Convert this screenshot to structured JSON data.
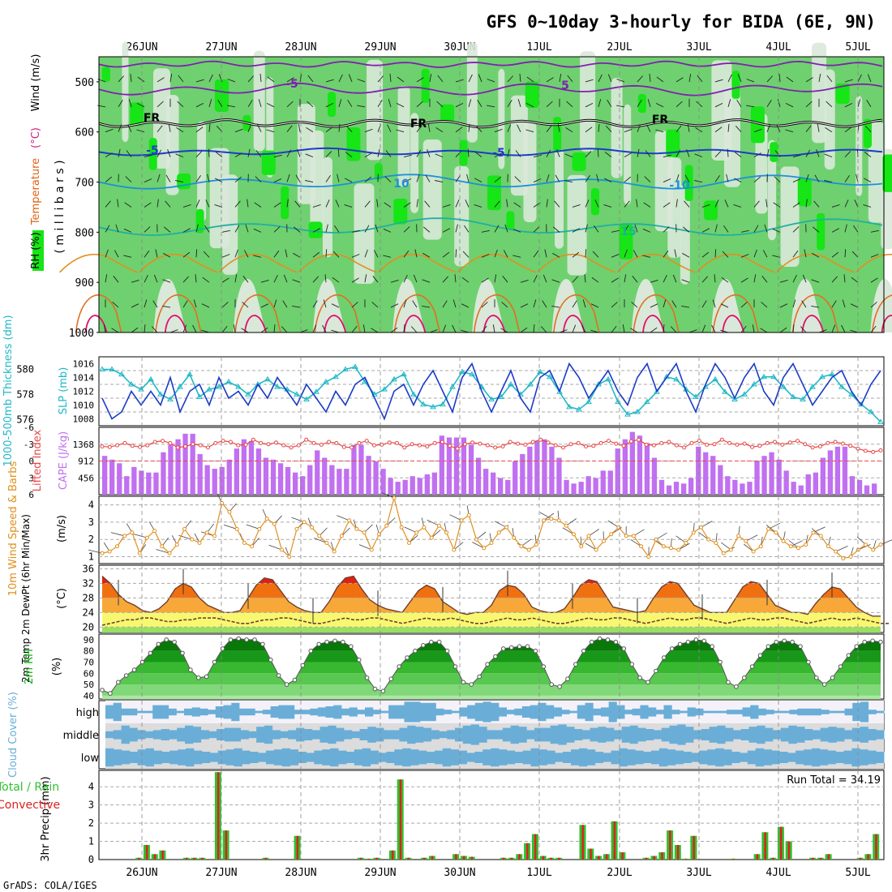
{
  "title": "GFS 0~10day 3-hourly for BIDA (6E, 9N)",
  "credit": "GrADS: COLA/IGES",
  "date_labels": [
    "26JUN",
    "27JUN",
    "28JUN",
    "29JUN",
    "30JUN",
    "1JUL",
    "2JUL",
    "3JUL",
    "4JUL",
    "5JUL"
  ],
  "colors": {
    "rh_light": "#d9e8d9",
    "rh_mid": "#6fd06f",
    "rh_high": "#16e516",
    "cape": "#c070f0",
    "li": "#e84848",
    "slp": "#1c3cc8",
    "thk": "#20b8c8",
    "wind": "#e09020",
    "rh2m": "#10b010",
    "cloud": "#6aaed8",
    "rain": "#30c030",
    "conv": "#e02020"
  },
  "chart_data": [
    {
      "panel": "upper_air",
      "type": "heatmap",
      "ylabel_parts": [
        "RH (%)",
        "Temperature",
        "(°C)",
        "Wind (m/s)"
      ],
      "yaxis_label": "( m i l l i b a r s )",
      "y_ticks": [
        "500",
        "600",
        "700",
        "800",
        "900",
        "1000"
      ],
      "ylim": [
        450,
        1000
      ],
      "contour_labels": [
        "-5",
        "5",
        "FR",
        "FR",
        "FR",
        "-5",
        "-5",
        "10",
        "-10",
        "15"
      ]
    },
    {
      "panel": "slp_thickness",
      "type": "line",
      "ylabel_left": "1000-500mb Thickness (dm)",
      "ylabel_right": "SLP (mb)",
      "left_ticks": [
        "580",
        "578",
        "576"
      ],
      "right_ticks": [
        "1016",
        "1014",
        "1012",
        "1010",
        "1008"
      ],
      "series": [
        {
          "name": "SLP (mb)",
          "values": [
            1011,
            1008,
            1009,
            1012,
            1010,
            1012,
            1010,
            1014,
            1009,
            1012,
            1013,
            1010,
            1014,
            1011,
            1012,
            1010,
            1013,
            1011,
            1014,
            1012,
            1010,
            1013,
            1011,
            1009,
            1012,
            1010,
            1013,
            1014,
            1011,
            1008,
            1012,
            1013,
            1010,
            1013,
            1015,
            1012,
            1009,
            1014,
            1016,
            1012,
            1009,
            1012,
            1015,
            1011,
            1009,
            1014,
            1015,
            1012,
            1016,
            1014,
            1011,
            1013,
            1015,
            1012,
            1010,
            1014,
            1016,
            1012,
            1014,
            1016,
            1012,
            1009,
            1013,
            1016,
            1014,
            1011,
            1014,
            1016,
            1012,
            1010,
            1014,
            1016,
            1013,
            1010,
            1012,
            1014,
            1015,
            1012,
            1010,
            1013,
            1015
          ],
          "ylim": [
            1007,
            1017
          ]
        },
        {
          "name": "Thickness (dm)",
          "values": [
            580,
            580,
            579.6,
            578.8,
            578.4,
            579.2,
            578,
            577.6,
            578.6,
            579.6,
            577.8,
            578.4,
            578.6,
            579,
            578.6,
            578,
            578.8,
            579.2,
            578.6,
            578.4,
            578,
            577.6,
            578.2,
            579,
            579.4,
            580,
            580.2,
            579,
            578,
            578.4,
            579.2,
            579.6,
            578,
            577.2,
            577,
            577.2,
            578.6,
            579.8,
            579.6,
            578.6,
            577.6,
            577.8,
            578.8,
            578,
            578.8,
            579.8,
            579.4,
            578.2,
            577,
            576.8,
            577.4,
            578.8,
            579.2,
            577.4,
            576.4,
            576.6,
            577.4,
            578.2,
            579.4,
            579.2,
            578.4,
            577.8,
            578.6,
            579.2,
            578.2,
            577.6,
            578,
            578.8,
            579.4,
            579.4,
            578.6,
            577.8,
            577.6,
            578.6,
            579.4,
            579.6,
            578.6,
            578,
            577.2,
            576.6,
            575.8
          ],
          "ylim": [
            575.5,
            581
          ]
        }
      ]
    },
    {
      "panel": "cape_li",
      "type": "bar",
      "ylabel_left": "Lifted Index",
      "ylabel_right": "CAPE (J/kg)",
      "li_ticks": [
        "-6",
        "-3",
        "0",
        "3",
        "6"
      ],
      "cape_ticks": [
        "1368",
        "912",
        "456"
      ],
      "cape": [
        1050,
        950,
        850,
        500,
        750,
        650,
        600,
        600,
        1150,
        1350,
        1500,
        1650,
        1650,
        1100,
        800,
        700,
        750,
        950,
        1250,
        1500,
        1450,
        1250,
        1000,
        950,
        850,
        750,
        600,
        500,
        800,
        1200,
        1000,
        800,
        700,
        700,
        1350,
        1350,
        1050,
        900,
        700,
        450,
        350,
        400,
        500,
        450,
        550,
        600,
        1600,
        1550,
        1550,
        1550,
        1350,
        1000,
        700,
        600,
        450,
        400,
        900,
        1100,
        1300,
        1450,
        1500,
        1300,
        1000,
        400,
        300,
        350,
        500,
        450,
        650,
        650,
        1250,
        1500,
        1700,
        1600,
        1400,
        1000,
        400,
        250,
        350,
        300,
        450,
        1300,
        1150,
        1050,
        800,
        500,
        400,
        300,
        350,
        900,
        1050,
        1150,
        950,
        650,
        350,
        250,
        550,
        600,
        1000,
        1200,
        1300,
        1300,
        500,
        400,
        250,
        300
      ],
      "li": [
        -2.6,
        -2.5,
        -2.8,
        -3.2,
        -2.7,
        -2.5,
        -2.8,
        -3.4,
        -3.6,
        -3.2,
        -2.4,
        -2.6,
        -3,
        -2.8,
        -2.4,
        -3.2,
        -3.6,
        -3.4,
        -2.8,
        -2.9,
        -3.8,
        -3.2,
        -3,
        -3.3,
        -2.8,
        -2.4,
        -2.8,
        -3.8,
        -3.2,
        -2.9,
        -3.4,
        -3.2,
        -2.5,
        -2.4,
        -3.2,
        -3.6,
        -2.8,
        -2.9,
        -3.3,
        -3.2,
        -2.4,
        -3,
        -2.8,
        -2.6,
        -3.2,
        -3.4,
        -2.7,
        -2.2,
        -3,
        -3.3,
        -3.1,
        -2.8,
        -2.4,
        -2.6,
        -3.4,
        -3.1,
        -2.9,
        -3.4,
        -3.8,
        -3.3,
        -2.8,
        -2.4,
        -3,
        -3.2,
        -2.6,
        -2.7,
        -3.2,
        -3.6,
        -3.1,
        -2.7,
        -3.5,
        -3.8,
        -2.9,
        -2.8,
        -3.2,
        -3.4,
        -2.8,
        -2.4,
        -3.2,
        -3.6,
        -2.9,
        -3,
        -3.8,
        -3.2,
        -2.9,
        -3.1,
        -2.5,
        -2.7,
        -3.2,
        -3.4,
        -2.9,
        -3.3,
        -3.6,
        -3,
        -2.4,
        -2.6,
        -3.2,
        -3.4,
        -3.1,
        -2.7,
        -2.2,
        -1.8,
        -1.6,
        -1.9
      ]
    },
    {
      "panel": "wind10m",
      "type": "line",
      "ylabel": "10m Wind Speed & Barbs",
      "yunit": "(m/s)",
      "y_ticks": [
        "1",
        "2",
        "3",
        "4"
      ],
      "ylim": [
        0.6,
        4.5
      ],
      "values": [
        1.2,
        1.3,
        1.6,
        2.2,
        2.4,
        1.2,
        2.1,
        2.5,
        1.6,
        1.2,
        1.7,
        2.6,
        2.0,
        1.8,
        2.4,
        2.2,
        4.1,
        3.6,
        2.6,
        1.8,
        1.6,
        2.6,
        3.2,
        2.9,
        1.4,
        1.0,
        2.6,
        3.0,
        2.7,
        2.2,
        1.8,
        1.3,
        2.2,
        3.1,
        2.6,
        2.4,
        1.4,
        2.3,
        2.8,
        4.4,
        2.7,
        1.8,
        2.4,
        2.7,
        2.1,
        2.8,
        2.4,
        1.4,
        3.1,
        3.4,
        2.0,
        1.5,
        1.8,
        2.4,
        2.7,
        2.1,
        1.6,
        1.4,
        1.7,
        3.1,
        3.2,
        3.1,
        2.8,
        2.3,
        1.6,
        2.2,
        1.4,
        1.9,
        2.3,
        2.7,
        2.2,
        2.2,
        1.6,
        1.0,
        2.0,
        1.6,
        1.5,
        1.4,
        1.8,
        2.4,
        2.7,
        2.0,
        1.8,
        1.2,
        1.4,
        2.2,
        1.9,
        1.3,
        1.6,
        2.6,
        2.4,
        1.9,
        1.6,
        1.5,
        1.7,
        2.4,
        2.2,
        1.6,
        1.3,
        0.9,
        1.0,
        1.4,
        1.7,
        1.4,
        1.7
      ]
    },
    {
      "panel": "temp2m",
      "type": "area",
      "ylabel": "2m Temp 2m DewPt (6hr Min/Max)",
      "yunit": "(°C)",
      "y_ticks": [
        "20",
        "24",
        "28",
        "32",
        "36"
      ],
      "ylim": [
        18.5,
        37
      ],
      "temp": [
        34,
        32,
        29,
        27,
        26,
        24.5,
        24,
        25,
        27,
        30.5,
        32,
        31,
        28,
        26,
        25,
        24,
        24,
        24.5,
        28,
        31.5,
        33.5,
        33,
        30,
        27,
        25.5,
        24.5,
        24,
        24,
        27,
        31,
        33.5,
        34,
        30.5,
        27.5,
        26,
        25,
        24.5,
        24,
        27,
        30,
        31.5,
        30.5,
        27,
        25.5,
        24,
        23.5,
        24,
        24,
        26,
        30,
        31.5,
        31,
        29,
        25.5,
        24.5,
        24,
        24,
        25,
        28,
        31.5,
        33,
        32.5,
        29,
        25.5,
        25,
        24.5,
        24,
        24.5,
        28,
        31,
        32.5,
        32,
        29,
        26,
        25,
        24,
        24,
        24,
        27.5,
        31,
        32.5,
        32,
        29,
        26,
        25,
        24,
        24,
        23.5,
        26.5,
        29,
        31,
        30.5,
        28,
        25.5,
        24,
        23,
        23
      ],
      "dewpt": [
        20.5,
        21,
        21.5,
        22,
        22,
        22.5,
        22.5,
        22,
        21.5,
        21.5,
        22,
        22,
        22.5,
        22.5,
        22.5,
        22,
        21.5,
        21,
        21,
        21.5,
        22,
        22,
        22.5,
        22.5,
        22,
        21.5,
        21,
        21,
        21.5,
        22,
        22.5,
        22,
        22,
        22.5,
        22.5,
        22,
        21.5,
        21,
        21.5,
        22,
        22.5,
        22,
        22,
        22.5,
        22,
        21.5,
        21,
        21,
        21.5,
        22,
        22.5,
        22,
        22,
        22.5,
        22,
        21.5,
        21,
        21,
        21.5,
        22,
        22.5,
        22,
        22,
        22.5,
        22.5,
        22,
        21.5,
        21,
        21.5,
        22,
        22.5,
        22,
        22,
        22.5,
        22.5,
        22,
        21.5,
        21,
        21.5,
        22,
        22.5,
        22,
        22,
        22.5,
        22.5,
        22,
        21.5,
        21,
        21.5,
        22,
        22.5,
        22,
        22,
        22.5,
        22,
        21.5,
        21,
        21
      ]
    },
    {
      "panel": "rh2m",
      "type": "area",
      "ylabel": "2m RH",
      "yunit": "(%)",
      "y_ticks": [
        "40",
        "50",
        "60",
        "70",
        "80",
        "90"
      ],
      "ylim": [
        37,
        95
      ],
      "values": [
        45,
        42,
        52,
        58,
        63,
        70,
        78,
        86,
        90,
        88,
        78,
        63,
        56,
        57,
        70,
        82,
        90,
        91,
        90,
        90,
        86,
        72,
        58,
        50,
        54,
        67,
        80,
        86,
        88,
        89,
        88,
        84,
        72,
        56,
        46,
        44,
        55,
        66,
        74,
        80,
        85,
        88,
        88,
        80,
        66,
        52,
        50,
        57,
        68,
        75,
        82,
        83,
        84,
        84,
        80,
        66,
        50,
        48,
        55,
        68,
        80,
        88,
        91,
        90,
        88,
        82,
        68,
        56,
        52,
        62,
        74,
        82,
        86,
        88,
        90,
        89,
        84,
        70,
        52,
        48,
        56,
        66,
        76,
        84,
        88,
        89,
        88,
        84,
        70,
        56,
        50,
        56,
        66,
        76,
        84,
        88,
        89,
        88
      ]
    },
    {
      "panel": "cloud",
      "type": "heatmap",
      "ylabel": "Cloud Cover (%)",
      "rows": [
        "high",
        "middle",
        "low"
      ],
      "high": [
        60,
        80,
        30,
        30,
        10,
        10,
        60,
        60,
        30,
        10,
        30,
        40,
        30,
        20,
        50,
        60,
        80,
        30,
        30,
        10,
        20,
        50,
        60,
        60,
        20,
        20,
        30,
        40,
        50,
        60,
        30,
        40,
        20,
        40,
        20,
        10,
        60,
        60,
        90,
        90,
        80,
        80,
        30,
        20,
        10,
        40,
        60,
        80,
        90,
        80,
        40,
        20,
        30,
        50,
        60,
        80,
        60,
        40,
        20,
        10,
        60,
        80,
        30,
        40,
        90,
        60,
        20,
        30,
        60,
        40,
        20,
        60,
        20,
        10,
        40,
        30,
        10,
        10,
        10,
        20,
        20,
        40,
        60,
        30,
        20,
        10,
        10,
        20,
        30,
        30,
        30,
        20,
        10,
        10,
        30,
        80,
        90,
        20,
        10
      ],
      "middle": [
        30,
        40,
        80,
        60,
        40,
        30,
        40,
        50,
        40,
        60,
        80,
        70,
        40,
        30,
        50,
        60,
        60,
        40,
        30,
        70,
        80,
        40,
        30,
        40,
        60,
        50,
        40,
        70,
        80,
        60,
        40,
        30,
        50,
        70,
        60,
        40,
        40,
        60,
        80,
        70,
        60,
        40,
        30,
        40,
        60,
        80,
        90,
        70,
        40,
        40,
        60,
        80,
        70,
        40,
        60,
        60,
        80,
        90,
        70,
        50,
        40,
        60,
        70,
        60,
        40,
        70,
        80,
        60,
        50,
        40,
        60,
        80,
        90,
        70,
        40,
        50,
        70,
        80,
        60,
        40,
        50,
        70,
        80,
        60,
        40,
        60,
        80,
        70,
        50,
        40,
        60,
        70,
        60,
        40,
        60,
        70,
        50,
        40
      ],
      "low": [
        80,
        70,
        60,
        50,
        70,
        80,
        60,
        50,
        60,
        70,
        80,
        60,
        50,
        40,
        60,
        70,
        80,
        60,
        50,
        40,
        60,
        70,
        80,
        70,
        50,
        40,
        60,
        70,
        80,
        60,
        50,
        70,
        80,
        60,
        40,
        50,
        70,
        80,
        70,
        60,
        50,
        60,
        80,
        70,
        60,
        40,
        50,
        70,
        80,
        70,
        60,
        50,
        60,
        80,
        70,
        60,
        40,
        50,
        70,
        80,
        70,
        50,
        40,
        60,
        80,
        70,
        60,
        50,
        60,
        80,
        70,
        60,
        50,
        40,
        60,
        70,
        80,
        70,
        50,
        40,
        60,
        80,
        70,
        60,
        50,
        40,
        60,
        70,
        80,
        70,
        60,
        50,
        60,
        80,
        70,
        60,
        50
      ]
    },
    {
      "panel": "precip",
      "type": "bar",
      "ylabel": "3hr Precip (mm)",
      "side_label_1": "Total / Rain",
      "side_label_2": "Convective",
      "run_total": "Run Total = 34.19",
      "y_ticks": [
        "0",
        "1",
        "2",
        "3",
        "4"
      ],
      "ylim": [
        0,
        4.9
      ],
      "x_start_hours": 6,
      "values": [
        0,
        0,
        0,
        0,
        0.1,
        0.8,
        0.3,
        0.5,
        0,
        0,
        0.1,
        0.1,
        0.1,
        0,
        4.8,
        1.6,
        0,
        0,
        0,
        0,
        0.1,
        0,
        0,
        0,
        1.3,
        0,
        0,
        0,
        0,
        0,
        0,
        0,
        0.1,
        0.05,
        0.1,
        0,
        0.5,
        4.4,
        0.1,
        0,
        0.1,
        0.2,
        0,
        0,
        0.3,
        0.2,
        0.15,
        0,
        0,
        0,
        0.1,
        0.1,
        0.3,
        0.9,
        1.4,
        0.2,
        0.1,
        0.1,
        0,
        0,
        1.9,
        0.6,
        0.2,
        0.3,
        2.1,
        0.4,
        0,
        0,
        0.1,
        0.2,
        0.4,
        1.6,
        0.8,
        0.05,
        1.3,
        0,
        0,
        0,
        0,
        0.05,
        0,
        0,
        0.3,
        1.5,
        0.1,
        1.8,
        1.0,
        0,
        0,
        0.1,
        0.1,
        0.3,
        0,
        0,
        0,
        0.1,
        0.3,
        1.4
      ]
    }
  ]
}
